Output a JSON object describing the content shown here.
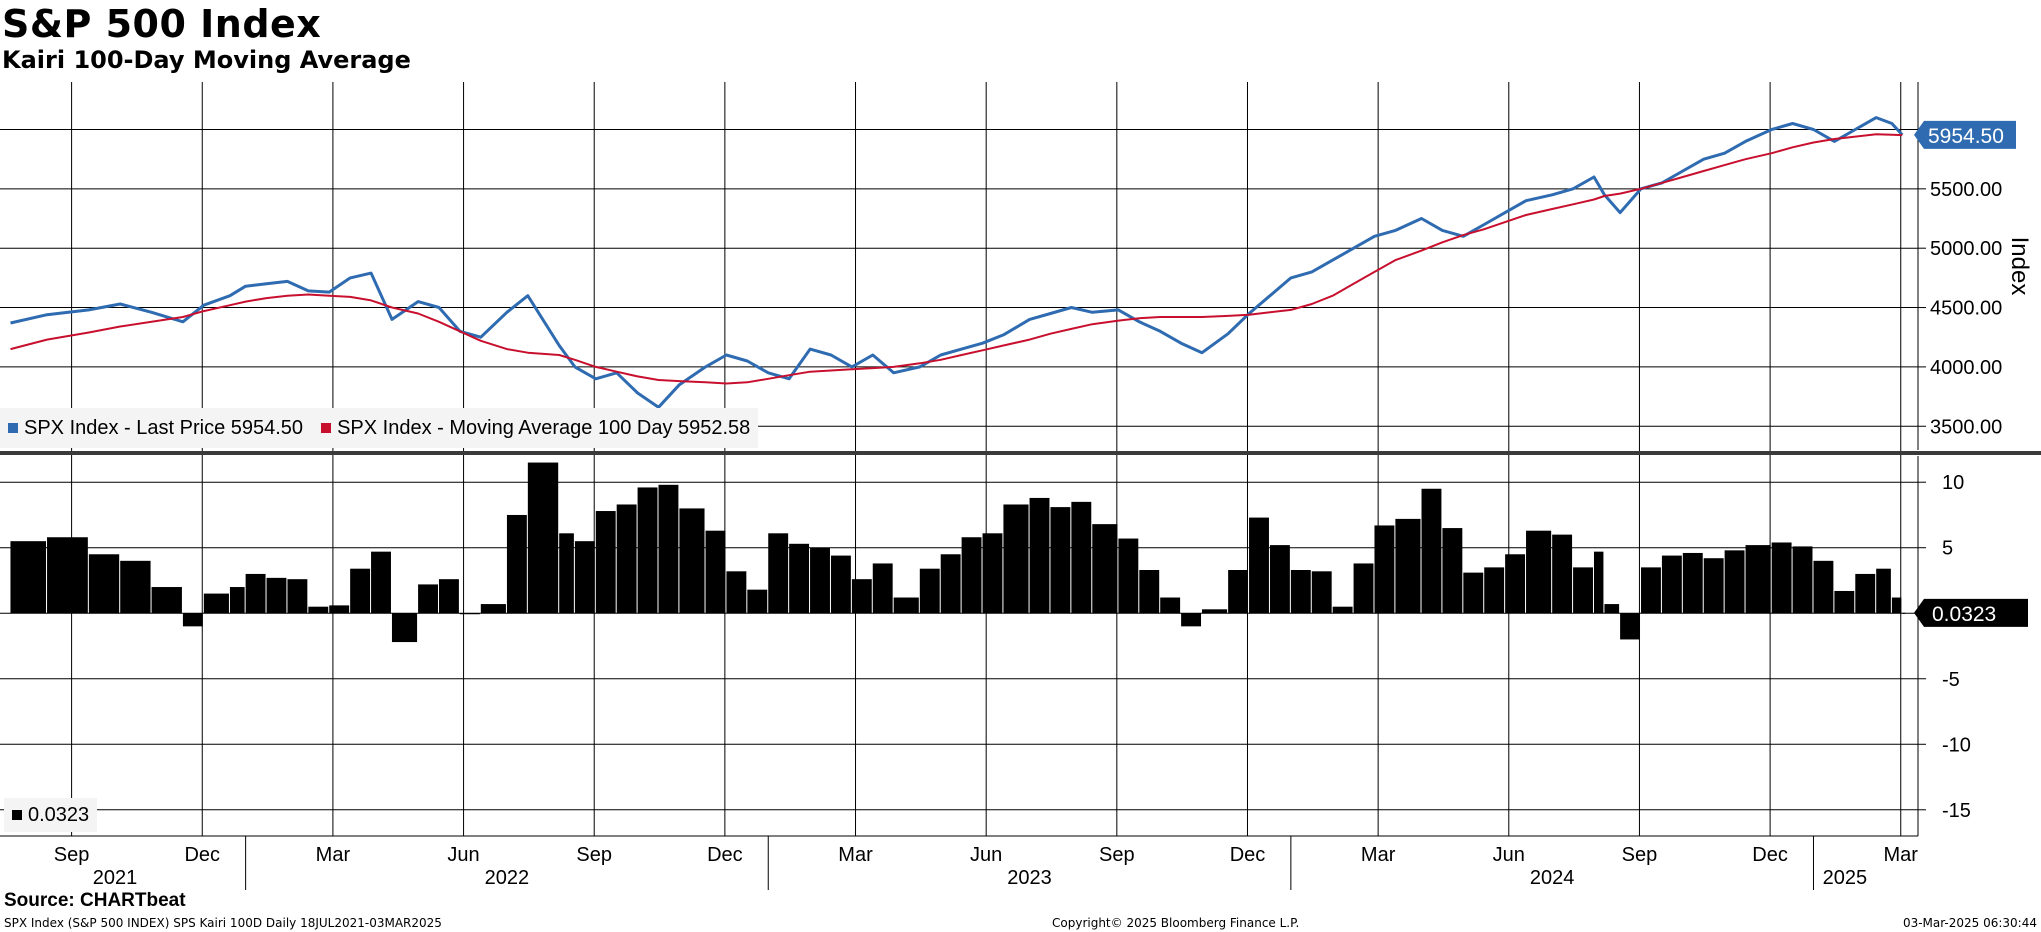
{
  "header": {
    "title": "S&P 500 Index",
    "subtitle": "Kairi 100-Day Moving Average"
  },
  "legend": {
    "top": [
      {
        "label": "SPX Index - Last Price 5954.50",
        "color": "#2e6bb0"
      },
      {
        "label": "SPX Index - Moving Average 100 Day 5952.58",
        "color": "#c8102e"
      }
    ],
    "bottom": {
      "label": "0.0323",
      "color": "#000000"
    }
  },
  "footer": {
    "source": "Source: CHARTbeat",
    "series_info": "SPX Index (S&P 500 INDEX) SPS Kairi 100D  Daily 18JUL2021-03MAR2025",
    "copyright": "Copyright© 2025 Bloomberg Finance L.P.",
    "timestamp": "03-Mar-2025 06:30:44"
  },
  "chart_data": [
    {
      "type": "line",
      "title": "S&P 500 Index",
      "ylabel": "Index",
      "ylim": [
        3300,
        6400
      ],
      "yticks": [
        "3500.00",
        "4000.00",
        "4500.00",
        "5000.00",
        "5500.00"
      ],
      "grid": true,
      "last_value_label": "5954.50",
      "x": [
        2021.55,
        2021.62,
        2021.7,
        2021.76,
        2021.82,
        2021.88,
        2021.92,
        2021.97,
        2022.0,
        2022.04,
        2022.08,
        2022.12,
        2022.16,
        2022.2,
        2022.24,
        2022.28,
        2022.33,
        2022.37,
        2022.41,
        2022.45,
        2022.5,
        2022.54,
        2022.6,
        2022.63,
        2022.67,
        2022.71,
        2022.75,
        2022.79,
        2022.83,
        2022.88,
        2022.92,
        2022.96,
        2023.0,
        2023.04,
        2023.08,
        2023.12,
        2023.16,
        2023.2,
        2023.24,
        2023.29,
        2023.33,
        2023.37,
        2023.41,
        2023.45,
        2023.5,
        2023.54,
        2023.58,
        2023.62,
        2023.67,
        2023.71,
        2023.75,
        2023.79,
        2023.83,
        2023.88,
        2023.92,
        2023.96,
        2024.0,
        2024.04,
        2024.08,
        2024.12,
        2024.16,
        2024.2,
        2024.25,
        2024.29,
        2024.33,
        2024.37,
        2024.41,
        2024.45,
        2024.5,
        2024.54,
        2024.58,
        2024.6,
        2024.63,
        2024.67,
        2024.71,
        2024.75,
        2024.79,
        2024.83,
        2024.87,
        2024.92,
        2024.96,
        2025.0,
        2025.04,
        2025.08,
        2025.12,
        2025.15,
        2025.17
      ],
      "series": [
        {
          "name": "SPX Index - Last Price",
          "color": "#2e6bb0",
          "values": [
            4370,
            4440,
            4480,
            4530,
            4460,
            4380,
            4520,
            4600,
            4680,
            4700,
            4720,
            4640,
            4630,
            4750,
            4790,
            4400,
            4550,
            4500,
            4300,
            4250,
            4460,
            4600,
            4180,
            4000,
            3900,
            3950,
            3780,
            3660,
            3850,
            4000,
            4100,
            4050,
            3950,
            3900,
            4150,
            4100,
            4000,
            4100,
            3950,
            4000,
            4100,
            4150,
            4200,
            4270,
            4400,
            4450,
            4500,
            4460,
            4480,
            4380,
            4300,
            4200,
            4120,
            4280,
            4450,
            4600,
            4750,
            4800,
            4900,
            5000,
            5100,
            5150,
            5250,
            5150,
            5100,
            5200,
            5300,
            5400,
            5450,
            5500,
            5600,
            5450,
            5300,
            5500,
            5550,
            5650,
            5750,
            5800,
            5900,
            6000,
            6050,
            6000,
            5900,
            6000,
            6100,
            6050,
            5954.5
          ]
        },
        {
          "name": "SPX Index - Moving Average 100 Day",
          "color": "#c8102e",
          "values": [
            4150,
            4230,
            4290,
            4340,
            4380,
            4420,
            4470,
            4520,
            4550,
            4580,
            4600,
            4610,
            4600,
            4590,
            4560,
            4500,
            4450,
            4380,
            4300,
            4220,
            4150,
            4120,
            4100,
            4060,
            4000,
            3960,
            3920,
            3890,
            3880,
            3870,
            3860,
            3870,
            3900,
            3930,
            3960,
            3970,
            3980,
            3990,
            4000,
            4030,
            4060,
            4100,
            4140,
            4180,
            4230,
            4280,
            4320,
            4360,
            4390,
            4410,
            4420,
            4420,
            4420,
            4430,
            4440,
            4460,
            4480,
            4530,
            4600,
            4700,
            4800,
            4900,
            4980,
            5050,
            5110,
            5160,
            5220,
            5280,
            5330,
            5370,
            5410,
            5440,
            5460,
            5500,
            5550,
            5600,
            5650,
            5700,
            5750,
            5800,
            5850,
            5890,
            5920,
            5940,
            5960,
            5955,
            5952.58
          ]
        }
      ]
    },
    {
      "type": "bar",
      "title": "Kairi 100-Day Moving Average",
      "ylim": [
        -17,
        12
      ],
      "yticks": [
        "10",
        "5",
        "-5",
        "-10",
        "-15"
      ],
      "grid": true,
      "last_value_label": "0.0323",
      "x": [
        2021.55,
        2021.62,
        2021.7,
        2021.76,
        2021.82,
        2021.88,
        2021.92,
        2021.97,
        2022.0,
        2022.04,
        2022.08,
        2022.12,
        2022.16,
        2022.2,
        2022.24,
        2022.28,
        2022.33,
        2022.37,
        2022.41,
        2022.45,
        2022.5,
        2022.54,
        2022.6,
        2022.63,
        2022.67,
        2022.71,
        2022.75,
        2022.79,
        2022.83,
        2022.88,
        2022.92,
        2022.96,
        2023.0,
        2023.04,
        2023.08,
        2023.12,
        2023.16,
        2023.2,
        2023.24,
        2023.29,
        2023.33,
        2023.37,
        2023.41,
        2023.45,
        2023.5,
        2023.54,
        2023.58,
        2023.62,
        2023.67,
        2023.71,
        2023.75,
        2023.79,
        2023.83,
        2023.88,
        2023.92,
        2023.96,
        2024.0,
        2024.04,
        2024.08,
        2024.12,
        2024.16,
        2024.2,
        2024.25,
        2024.29,
        2024.33,
        2024.37,
        2024.41,
        2024.45,
        2024.5,
        2024.54,
        2024.58,
        2024.6,
        2024.63,
        2024.67,
        2024.71,
        2024.75,
        2024.79,
        2024.83,
        2024.87,
        2024.92,
        2024.96,
        2025.0,
        2025.04,
        2025.08,
        2025.12,
        2025.15,
        2025.17
      ],
      "values": [
        5.5,
        5.8,
        4.5,
        4.0,
        2.0,
        -1.0,
        1.5,
        2.0,
        3.0,
        2.7,
        2.6,
        0.5,
        0.6,
        3.4,
        4.7,
        -2.2,
        2.2,
        2.6,
        0.0,
        0.7,
        7.5,
        11.5,
        6.1,
        5.5,
        7.8,
        8.3,
        9.6,
        9.8,
        8.0,
        6.3,
        3.2,
        1.8,
        6.1,
        5.3,
        5.0,
        4.4,
        2.6,
        3.8,
        1.2,
        3.4,
        4.5,
        5.8,
        6.1,
        8.3,
        8.8,
        8.1,
        8.5,
        6.8,
        5.7,
        3.3,
        1.2,
        -1.0,
        0.3,
        3.3,
        7.3,
        5.2,
        3.3,
        3.2,
        0.5,
        3.8,
        6.7,
        7.2,
        9.5,
        6.5,
        3.1,
        3.5,
        4.5,
        6.3,
        6.0,
        3.5,
        4.7,
        0.7,
        -2.0,
        3.5,
        4.4,
        4.6,
        4.2,
        4.8,
        5.2,
        5.4,
        5.1,
        4.0,
        1.7,
        3.0,
        3.4,
        1.2,
        0.0323
      ]
    }
  ],
  "x_axis": {
    "months": [
      {
        "label": "Sep",
        "t": 2021.667
      },
      {
        "label": "Dec",
        "t": 2021.917
      },
      {
        "label": "Mar",
        "t": 2022.167
      },
      {
        "label": "Jun",
        "t": 2022.417
      },
      {
        "label": "Sep",
        "t": 2022.667
      },
      {
        "label": "Dec",
        "t": 2022.917
      },
      {
        "label": "Mar",
        "t": 2023.167
      },
      {
        "label": "Jun",
        "t": 2023.417
      },
      {
        "label": "Sep",
        "t": 2023.667
      },
      {
        "label": "Dec",
        "t": 2023.917
      },
      {
        "label": "Mar",
        "t": 2024.167
      },
      {
        "label": "Jun",
        "t": 2024.417
      },
      {
        "label": "Sep",
        "t": 2024.667
      },
      {
        "label": "Dec",
        "t": 2024.917
      },
      {
        "label": "Mar",
        "t": 2025.167
      }
    ],
    "years": [
      {
        "label": "2021",
        "t": 2021.75
      },
      {
        "label": "2022",
        "t": 2022.5
      },
      {
        "label": "2023",
        "t": 2023.5
      },
      {
        "label": "2024",
        "t": 2024.5
      },
      {
        "label": "2025",
        "t": 2025.06
      }
    ],
    "year_boundaries": [
      2022.0,
      2023.0,
      2024.0,
      2025.0
    ]
  }
}
